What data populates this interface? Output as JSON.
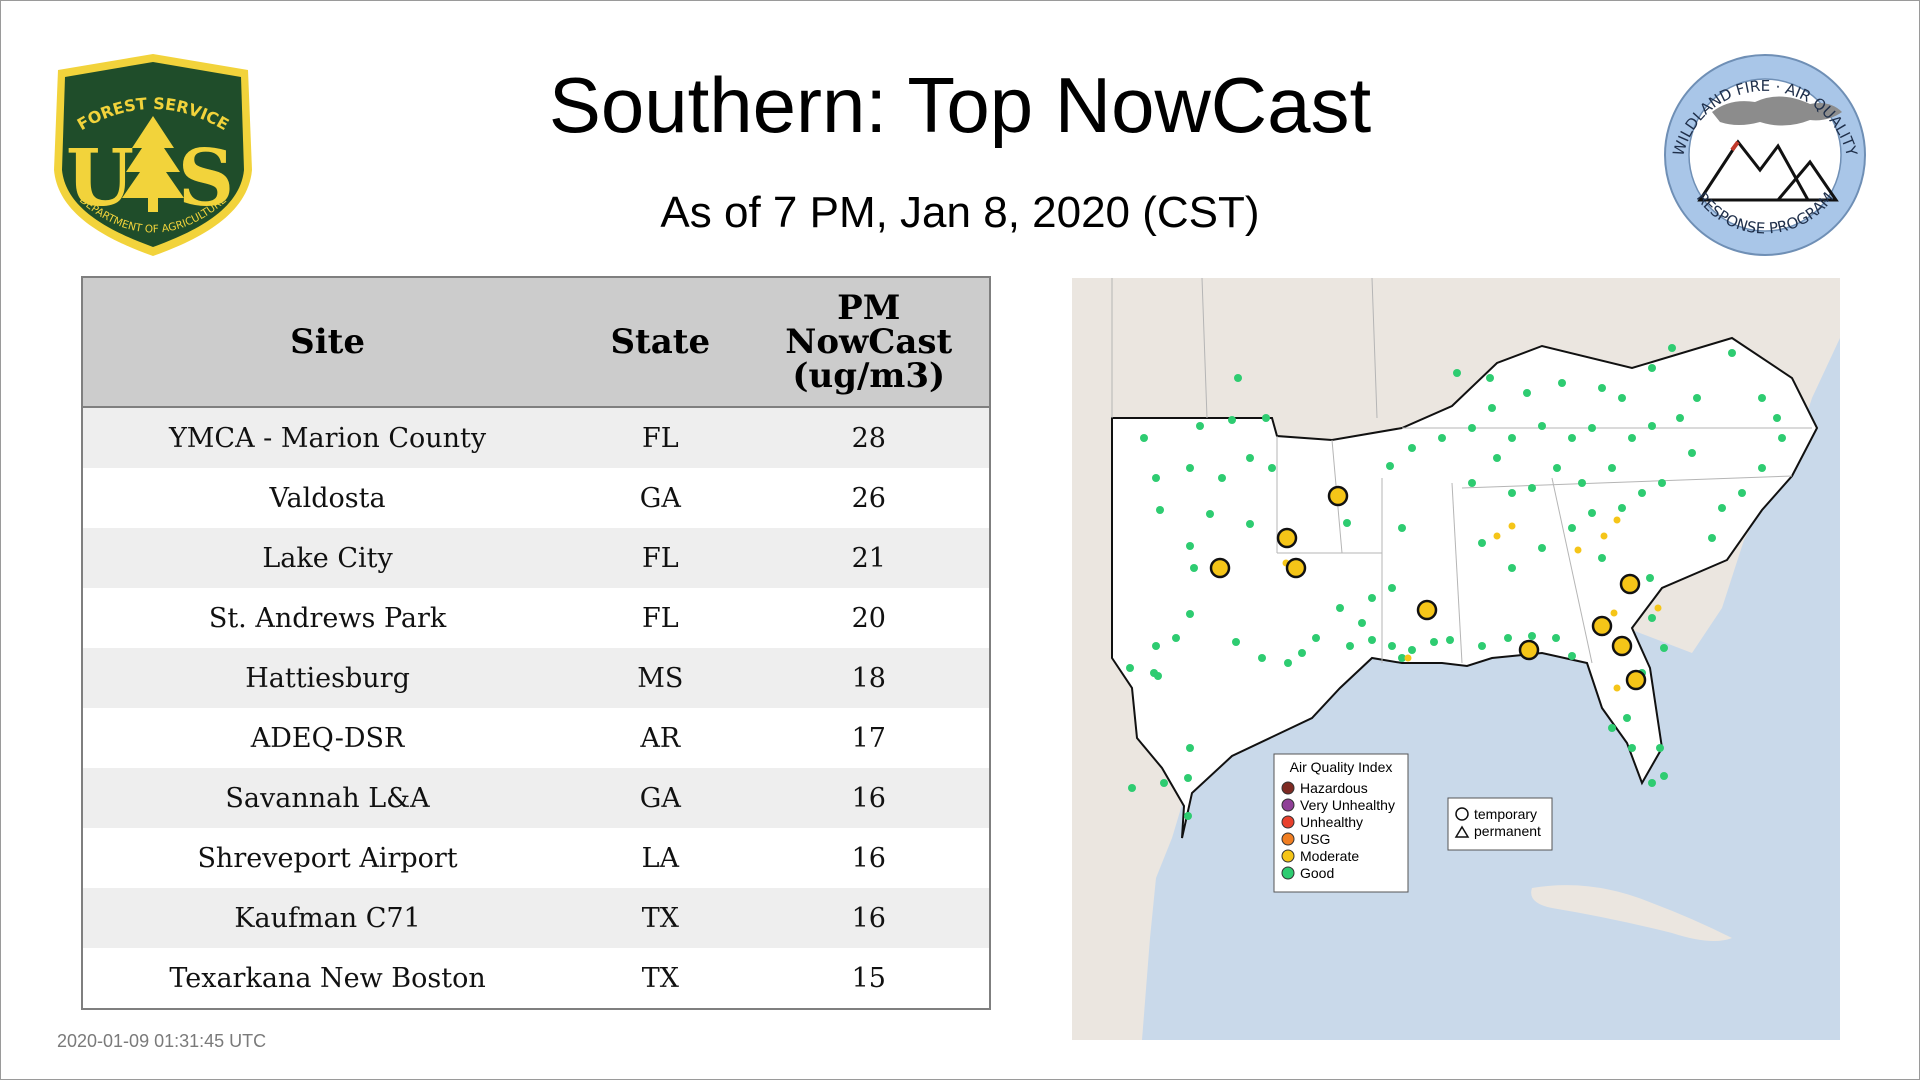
{
  "header": {
    "title": "Southern: Top NowCast",
    "subtitle": "As of  7 PM, Jan  8, 2020 (CST)"
  },
  "logos": {
    "usfs": {
      "top_text": "FOREST SERVICE",
      "bottom_text": "DEPARTMENT OF AGRICULTURE",
      "letters": "US",
      "green": "#1f4d2a",
      "gold": "#f2d33b"
    },
    "wfaq": {
      "top_text": "WILDLAND FIRE · AIR QUALITY",
      "bottom_text": "RESPONSE PROGRAM",
      "ring": "#a9c6e8"
    }
  },
  "table": {
    "columns": [
      "Site",
      "State",
      "PM NowCast (ug/m3)"
    ],
    "column_lines": {
      "pm": [
        "PM",
        "NowCast",
        "(ug/m3)"
      ]
    },
    "rows": [
      {
        "site": "YMCA - Marion County",
        "state": "FL",
        "value": "28"
      },
      {
        "site": "Valdosta",
        "state": "GA",
        "value": "26"
      },
      {
        "site": "Lake City",
        "state": "FL",
        "value": "21"
      },
      {
        "site": "St. Andrews Park",
        "state": "FL",
        "value": "20"
      },
      {
        "site": "Hattiesburg",
        "state": "MS",
        "value": "18"
      },
      {
        "site": "ADEQ-DSR",
        "state": "AR",
        "value": "17"
      },
      {
        "site": "Savannah L&A",
        "state": "GA",
        "value": "16"
      },
      {
        "site": "Shreveport Airport",
        "state": "LA",
        "value": "16"
      },
      {
        "site": "Kaufman C71",
        "state": "TX",
        "value": "16"
      },
      {
        "site": "Texarkana New Boston",
        "state": "TX",
        "value": "15"
      }
    ]
  },
  "map": {
    "legend": {
      "title": "Air Quality Index",
      "items": [
        {
          "label": "Hazardous",
          "color": "#7e2a22"
        },
        {
          "label": "Very Unhealthy",
          "color": "#8f3f97"
        },
        {
          "label": "Unhealthy",
          "color": "#e8402c"
        },
        {
          "label": "USG",
          "color": "#f07e22"
        },
        {
          "label": "Moderate",
          "color": "#f5c518"
        },
        {
          "label": "Good",
          "color": "#2ecc71"
        }
      ]
    },
    "marker_legend": {
      "temporary": "temporary",
      "permanent": "permanent"
    },
    "colors": {
      "water": "#c9d9ea",
      "land": "#ebe6e0",
      "region": "#ffffff",
      "good": "#2ecc71",
      "moderate": "#f5c518"
    }
  },
  "footer": {
    "timestamp": "2020-01-09 01:31:45 UTC"
  }
}
